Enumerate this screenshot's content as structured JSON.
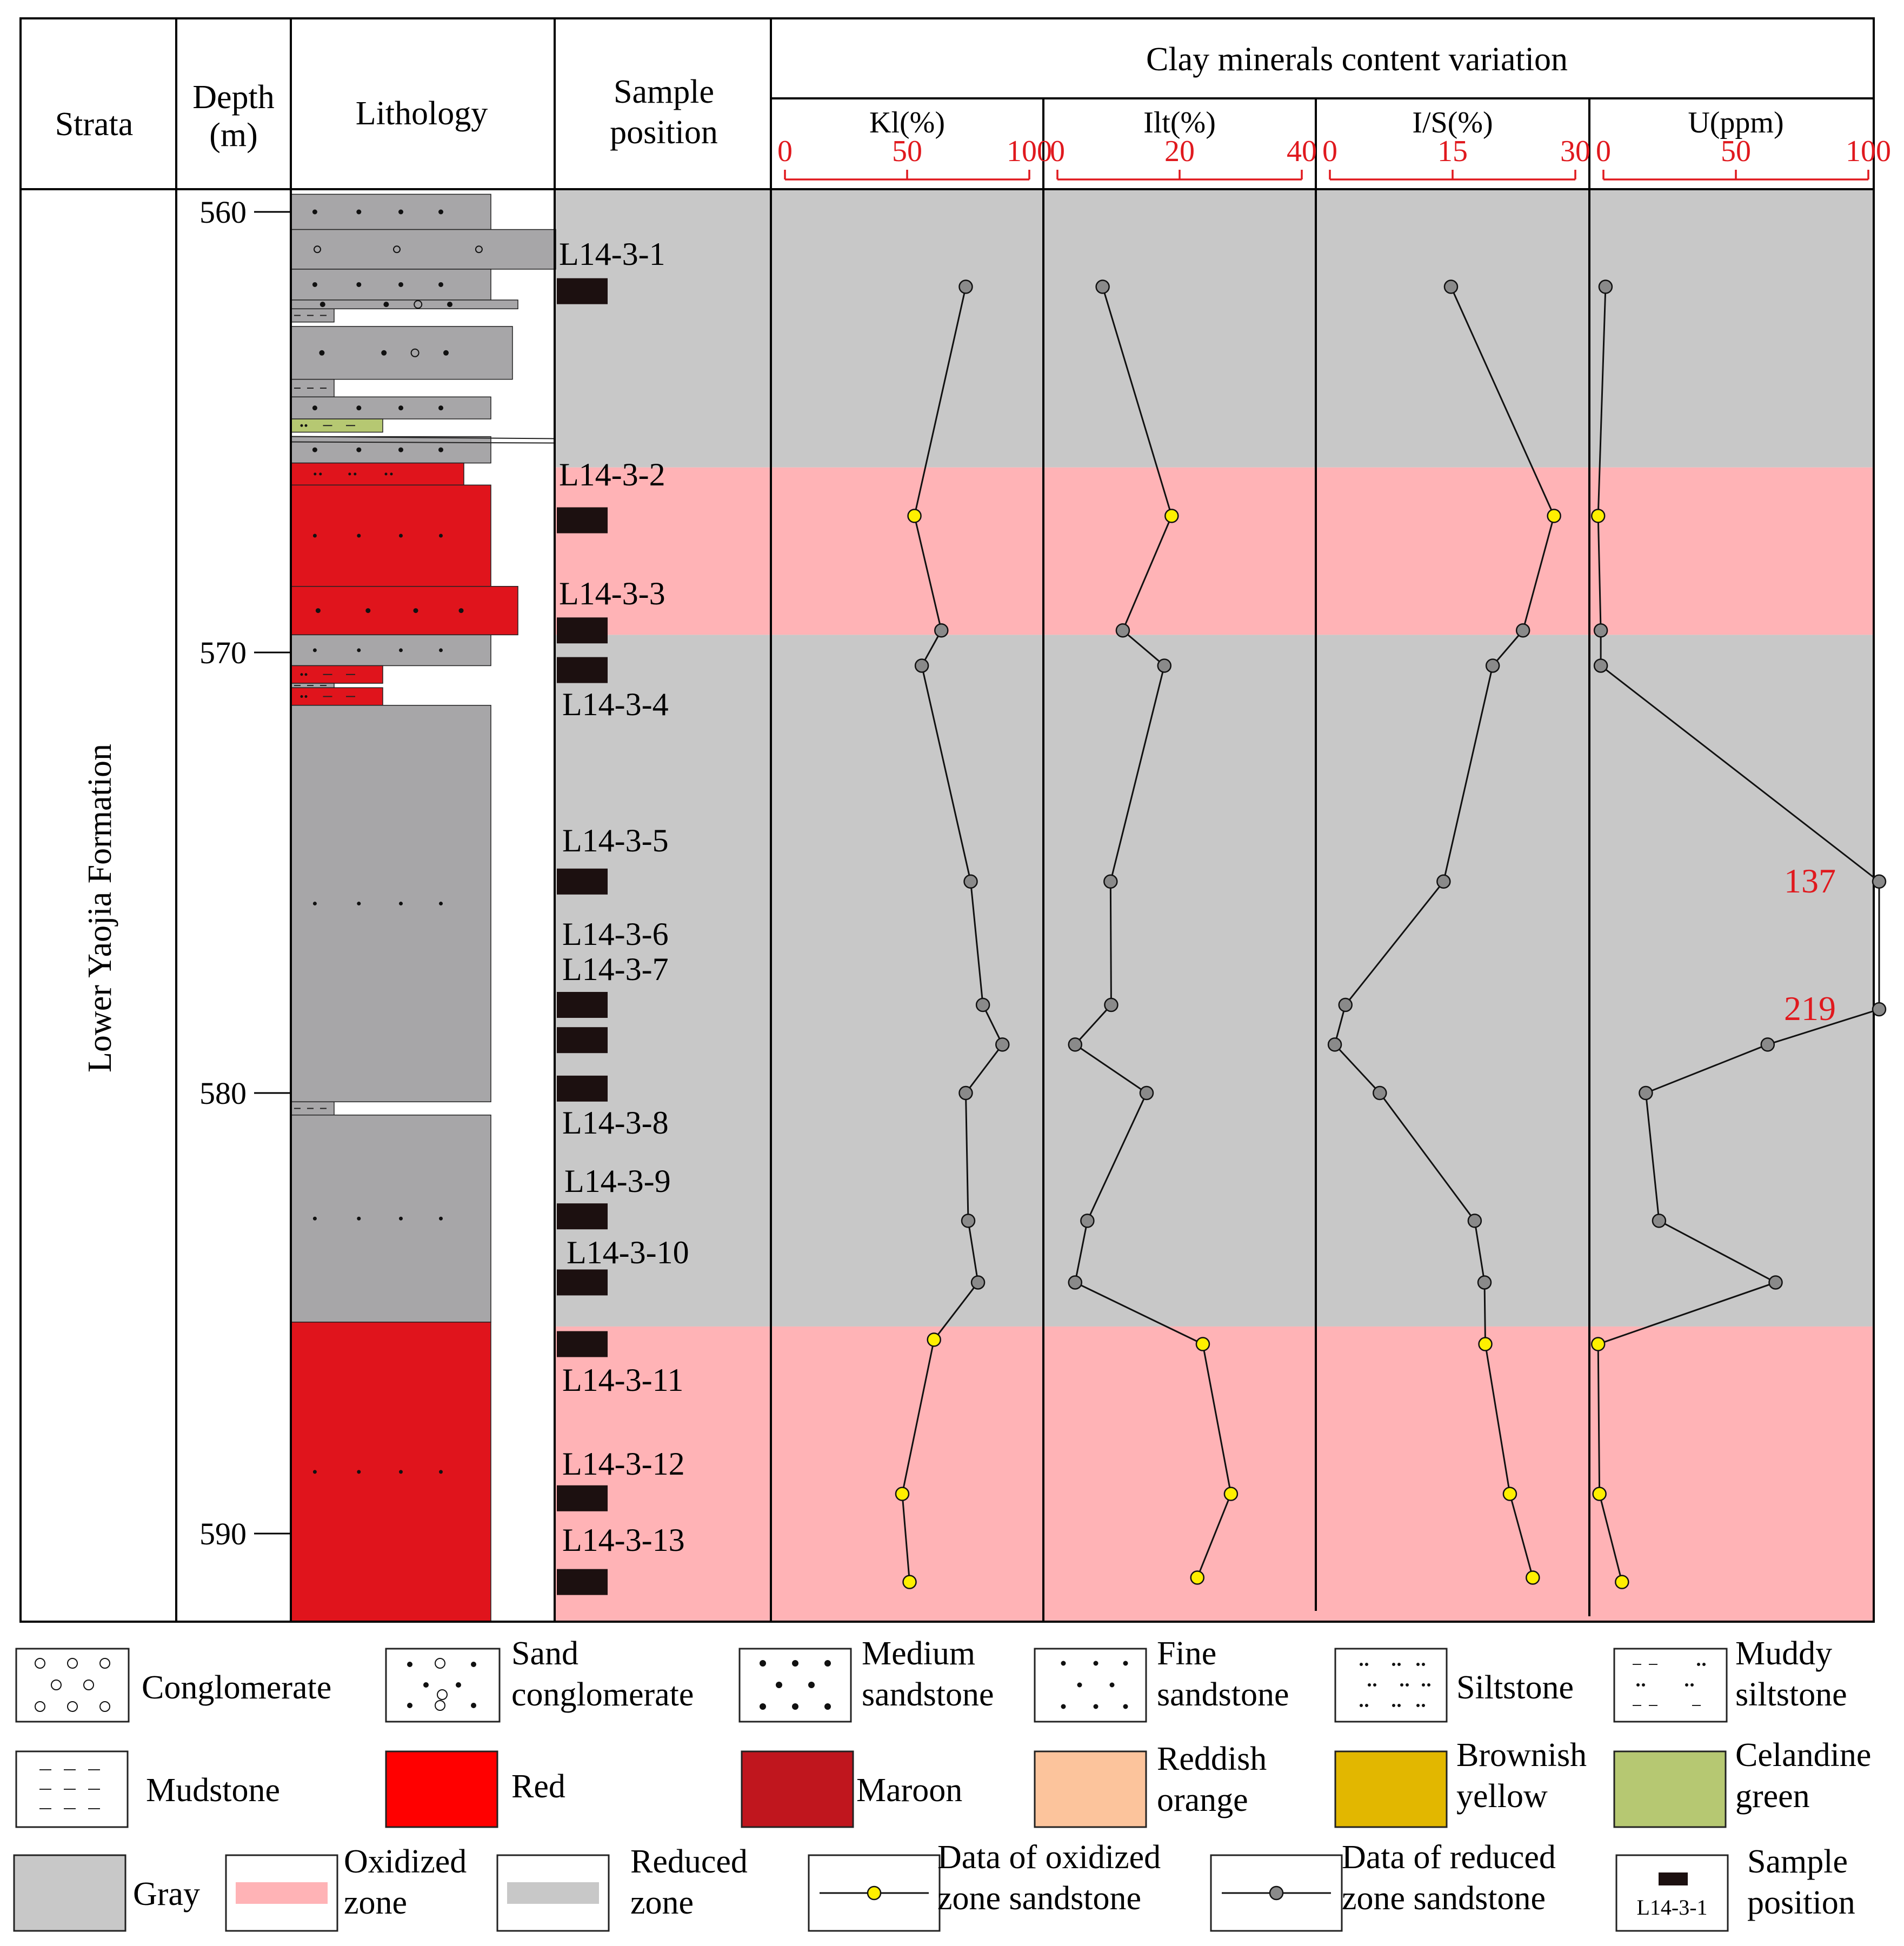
{
  "headers": {
    "strata": "Strata",
    "depth_line1": "Depth",
    "depth_line2": "(m)",
    "lithology": "Lithology",
    "sample_line1": "Sample",
    "sample_line2": "position",
    "clay_title": "Clay minerals  content variation"
  },
  "strata_name": "Lower  Yaojia Formation",
  "depth_ticks": [
    "560",
    "570",
    "580",
    "590"
  ],
  "colors": {
    "red_accent": "#e0191e",
    "oxidized_zone": "#ffb3b6",
    "reduced_zone": "#c8c8c8",
    "lith_gray": "#a7a6a8",
    "lith_red": "#e0141c",
    "maroon": "#c0161e",
    "reddish_orange": "#fcc49c",
    "brownish_yellow": "#e2b700",
    "celandine_green": "#b6c872",
    "oxidized_marker": "#ffef00",
    "reduced_marker": "#8a8a8a",
    "sample_bar": "#1c1010"
  },
  "chart_data": {
    "type": "line",
    "y_axis": {
      "label": "Depth (m)",
      "range": [
        559.5,
        592
      ],
      "ticks": [
        560,
        570,
        580,
        590
      ]
    },
    "zones": [
      {
        "type": "reduced",
        "from": 559.5,
        "to": 565.8
      },
      {
        "type": "oxidized",
        "from": 565.8,
        "to": 569.6
      },
      {
        "type": "reduced",
        "from": 569.6,
        "to": 585.3
      },
      {
        "type": "oxidized",
        "from": 585.3,
        "to": 592
      }
    ],
    "samples": [
      {
        "name": "L14-3-1",
        "depth": 561.8
      },
      {
        "name": "L14-3-2",
        "depth": 567.0
      },
      {
        "name": "L14-3-3",
        "depth": 569.5
      },
      {
        "name": "L14-3-4",
        "depth": 570.4
      },
      {
        "name": "L14-3-5",
        "depth": 575.2
      },
      {
        "name": "L14-3-6",
        "depth": 578.0
      },
      {
        "name": "L14-3-7",
        "depth": 578.8
      },
      {
        "name": "L14-3-8",
        "depth": 579.9
      },
      {
        "name": "L14-3-9",
        "depth": 582.8
      },
      {
        "name": "L14-3-10",
        "depth": 584.3
      },
      {
        "name": "L14-3-11",
        "depth": 585.7
      },
      {
        "name": "L14-3-12",
        "depth": 589.2
      },
      {
        "name": "L14-3-13",
        "depth": 591.1
      }
    ],
    "zone_of_point": [
      "reduced",
      "oxidized",
      "reduced",
      "reduced",
      "reduced",
      "reduced",
      "reduced",
      "reduced",
      "reduced",
      "reduced",
      "oxidized",
      "oxidized",
      "oxidized"
    ],
    "series": [
      {
        "name": "Kl(%)",
        "range": [
          0,
          100
        ],
        "ticks": [
          "0",
          "50",
          "100"
        ],
        "depths": [
          561.7,
          566.9,
          569.5,
          570.3,
          575.2,
          578.0,
          578.9,
          580.0,
          582.9,
          584.3,
          585.6,
          589.1,
          591.1
        ],
        "values": [
          74,
          53,
          64,
          56,
          76,
          81,
          89,
          74,
          75,
          79,
          61,
          48,
          51
        ]
      },
      {
        "name": "Ilt(%)",
        "range": [
          0,
          40
        ],
        "ticks": [
          "0",
          "20",
          "40"
        ],
        "depths": [
          561.7,
          566.9,
          569.5,
          570.3,
          575.2,
          578.0,
          578.9,
          580.0,
          582.9,
          584.3,
          585.7,
          589.1,
          591.0
        ],
        "values": [
          7.4,
          18.7,
          10.7,
          17.5,
          8.7,
          8.8,
          2.9,
          14.6,
          4.9,
          2.9,
          23.8,
          28.4,
          22.9
        ]
      },
      {
        "name": "I/S(%)",
        "range": [
          0,
          30
        ],
        "ticks": [
          "0",
          "15",
          "30"
        ],
        "depths": [
          561.7,
          566.9,
          569.5,
          570.3,
          575.2,
          578.0,
          578.9,
          580.0,
          582.9,
          584.3,
          585.7,
          589.1,
          591.0
        ],
        "values": [
          14.8,
          27.4,
          23.6,
          19.9,
          13.9,
          1.9,
          0.6,
          6.1,
          17.7,
          18.9,
          19.0,
          22.0,
          24.8
        ]
      },
      {
        "name": "U(ppm)",
        "range": [
          0,
          100
        ],
        "ticks": [
          "0",
          "50",
          "100"
        ],
        "depths": [
          561.7,
          566.9,
          569.5,
          570.3,
          575.2,
          578.1,
          578.9,
          580.0,
          582.9,
          584.3,
          585.7,
          589.1,
          591.1
        ],
        "values": [
          0.8,
          -2,
          -1,
          -1,
          137,
          219,
          62,
          16,
          21,
          65,
          -2,
          -1.5,
          7
        ],
        "offscale_labels": [
          {
            "index": 4,
            "label": "137"
          },
          {
            "index": 5,
            "label": "219"
          }
        ]
      }
    ]
  },
  "lithology_layers": [
    {
      "from": 559.6,
      "to": 560.4,
      "color": "gray",
      "pattern": "medium sandstone"
    },
    {
      "from": 560.4,
      "to": 561.3,
      "color": "gray",
      "pattern": "conglomerate"
    },
    {
      "from": 561.3,
      "to": 562.0,
      "color": "gray",
      "pattern": "medium sandstone"
    },
    {
      "from": 562.0,
      "to": 562.2,
      "color": "gray",
      "pattern": "sand conglomerate"
    },
    {
      "from": 562.2,
      "to": 562.5,
      "color": "gray",
      "pattern": "mudstone"
    },
    {
      "from": 562.6,
      "to": 563.8,
      "color": "gray",
      "pattern": "sand conglomerate"
    },
    {
      "from": 563.8,
      "to": 564.2,
      "color": "gray",
      "pattern": "mudstone"
    },
    {
      "from": 564.2,
      "to": 564.7,
      "color": "gray",
      "pattern": "medium sandstone"
    },
    {
      "from": 564.7,
      "to": 565.0,
      "color": "celandine green",
      "pattern": "muddy siltstone"
    },
    {
      "from": 565.1,
      "to": 565.7,
      "color": "gray",
      "pattern": "medium sandstone"
    },
    {
      "from": 565.7,
      "to": 566.2,
      "color": "red",
      "pattern": "siltstone"
    },
    {
      "from": 566.2,
      "to": 568.5,
      "color": "red",
      "pattern": "fine sandstone"
    },
    {
      "from": 568.5,
      "to": 569.6,
      "color": "red",
      "pattern": "medium sandstone"
    },
    {
      "from": 569.6,
      "to": 570.3,
      "color": "gray",
      "pattern": "fine sandstone"
    },
    {
      "from": 570.3,
      "to": 570.7,
      "color": "red",
      "pattern": "muddy siltstone"
    },
    {
      "from": 570.7,
      "to": 570.8,
      "color": "gray",
      "pattern": "mudstone"
    },
    {
      "from": 570.8,
      "to": 571.2,
      "color": "red",
      "pattern": "muddy siltstone"
    },
    {
      "from": 571.2,
      "to": 580.2,
      "color": "gray",
      "pattern": "fine sandstone"
    },
    {
      "from": 580.2,
      "to": 580.5,
      "color": "gray",
      "pattern": "mudstone"
    },
    {
      "from": 580.5,
      "to": 585.2,
      "color": "gray",
      "pattern": "fine sandstone"
    },
    {
      "from": 585.2,
      "to": 592,
      "color": "red",
      "pattern": "fine sandstone"
    }
  ],
  "legend": [
    {
      "name": "conglomerate",
      "lines": [
        "Conglomerate"
      ]
    },
    {
      "name": "sand-conglomerate",
      "lines": [
        "Sand",
        "conglomerate"
      ]
    },
    {
      "name": "medium-sandstone",
      "lines": [
        "Medium",
        "sandstone"
      ]
    },
    {
      "name": "fine-sandstone",
      "lines": [
        "Fine",
        "sandstone"
      ]
    },
    {
      "name": "siltstone",
      "lines": [
        "Siltstone"
      ]
    },
    {
      "name": "muddy-siltstone",
      "lines": [
        "Muddy",
        "siltstone"
      ]
    },
    {
      "name": "mudstone",
      "lines": [
        "Mudstone"
      ]
    },
    {
      "name": "red",
      "lines": [
        "Red"
      ]
    },
    {
      "name": "maroon",
      "lines": [
        "Maroon"
      ]
    },
    {
      "name": "reddish-orange",
      "lines": [
        "Reddish",
        "orange"
      ]
    },
    {
      "name": "brownish-yellow",
      "lines": [
        "Brownish",
        "yellow"
      ]
    },
    {
      "name": "celandine-green",
      "lines": [
        "Celandine",
        "green"
      ]
    },
    {
      "name": "gray",
      "lines": [
        "Gray"
      ]
    },
    {
      "name": "oxidized-zone",
      "lines": [
        "Oxidized",
        "zone"
      ]
    },
    {
      "name": "reduced-zone",
      "lines": [
        "Reduced",
        "zone"
      ]
    },
    {
      "name": "oxidized-data",
      "lines": [
        "Data of oxidized",
        "zone sandstone"
      ]
    },
    {
      "name": "reduced-data",
      "lines": [
        "Data of reduced",
        "zone sandstone"
      ]
    },
    {
      "name": "sample-position",
      "lines": [
        "Sample",
        "position"
      ],
      "swatch_label": "L14-3-1"
    }
  ]
}
